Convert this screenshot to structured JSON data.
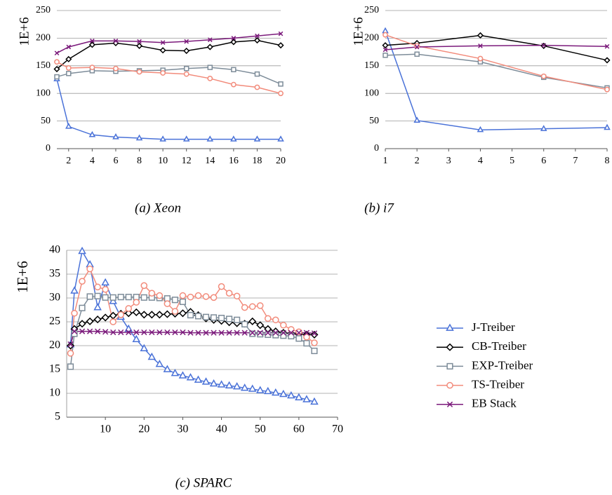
{
  "chart_data": [
    {
      "type": "line",
      "ylabel": "1E+6",
      "caption": "(a) Xeon",
      "x": [
        1,
        2,
        4,
        6,
        8,
        10,
        12,
        14,
        16,
        18,
        20
      ],
      "xlim": [
        1,
        20
      ],
      "xticks": [
        2,
        4,
        6,
        8,
        10,
        12,
        14,
        16,
        18,
        20
      ],
      "ylim": [
        0,
        250
      ],
      "yticks": [
        0,
        50,
        100,
        150,
        200,
        250
      ],
      "grid": true,
      "series": [
        {
          "color": "#4a72d8",
          "marker": "triangle",
          "values": [
            126,
            40,
            25,
            21,
            19,
            17,
            17,
            17,
            17,
            17,
            17
          ]
        },
        {
          "color": "#000000",
          "marker": "diamond",
          "values": [
            144,
            162,
            188,
            191,
            186,
            178,
            177,
            184,
            193,
            196,
            187
          ]
        },
        {
          "color": "#7d8c99",
          "marker": "square",
          "values": [
            130,
            136,
            141,
            140,
            141,
            142,
            145,
            147,
            143,
            135,
            117
          ]
        },
        {
          "color": "#f28b7b",
          "marker": "circle",
          "values": [
            157,
            146,
            147,
            145,
            139,
            137,
            135,
            127,
            116,
            111,
            100
          ]
        },
        {
          "color": "#7b1a7b",
          "marker": "x",
          "values": [
            173,
            184,
            195,
            195,
            194,
            192,
            194,
            197,
            200,
            204,
            208
          ]
        }
      ]
    },
    {
      "type": "line",
      "ylabel": "1E+6",
      "caption": "(b) i7",
      "x": [
        1,
        2,
        4,
        6,
        8
      ],
      "xlim": [
        1,
        8
      ],
      "xticks": [
        1,
        2,
        3,
        4,
        5,
        6,
        7,
        8
      ],
      "ylim": [
        0,
        250
      ],
      "yticks": [
        0,
        50,
        100,
        150,
        200,
        250
      ],
      "grid": true,
      "series": [
        {
          "color": "#4a72d8",
          "marker": "triangle",
          "values": [
            213,
            51,
            34,
            36,
            38
          ]
        },
        {
          "color": "#000000",
          "marker": "diamond",
          "values": [
            187,
            191,
            205,
            186,
            160
          ]
        },
        {
          "color": "#7d8c99",
          "marker": "square",
          "values": [
            169,
            171,
            157,
            129,
            110
          ]
        },
        {
          "color": "#f28b7b",
          "marker": "circle",
          "values": [
            206,
            186,
            163,
            131,
            107
          ]
        },
        {
          "color": "#7b1a7b",
          "marker": "x",
          "values": [
            179,
            184,
            186,
            187,
            185
          ]
        }
      ]
    },
    {
      "type": "line",
      "ylabel": "1E+6",
      "caption": "(c) SPARC",
      "legend": "right",
      "x": [
        1,
        2,
        4,
        6,
        8,
        10,
        12,
        14,
        16,
        18,
        20,
        22,
        24,
        26,
        28,
        30,
        32,
        34,
        36,
        38,
        40,
        42,
        44,
        46,
        48,
        50,
        52,
        54,
        56,
        58,
        60,
        62,
        64
      ],
      "xlim": [
        0,
        70
      ],
      "xticks": [
        10,
        20,
        30,
        40,
        50,
        60,
        70
      ],
      "ylim": [
        5,
        40
      ],
      "yticks": [
        5,
        10,
        15,
        20,
        25,
        30,
        35,
        40
      ],
      "grid": true,
      "series": [
        {
          "name": "J-Treiber",
          "color": "#4a72d8",
          "marker": "triangle",
          "values": [
            20.2,
            31.5,
            39.8,
            37,
            28,
            33.2,
            29.3,
            26,
            23.5,
            21.3,
            19.4,
            17.6,
            16.1,
            15,
            14.2,
            13.7,
            13.3,
            12.8,
            12.4,
            12,
            11.8,
            11.6,
            11.4,
            11.1,
            10.9,
            10.6,
            10.4,
            10.1,
            9.8,
            9.5,
            9.1,
            8.7,
            8.2
          ]
        },
        {
          "name": "CB-Treiber",
          "color": "#000000",
          "marker": "diamond",
          "values": [
            20,
            23.5,
            24.6,
            25.1,
            25.5,
            25.9,
            26.3,
            26.7,
            26.8,
            27,
            26.5,
            26.5,
            26.5,
            26.6,
            26.7,
            26.8,
            27.1,
            26.4,
            25.7,
            25.4,
            25.2,
            24.9,
            24.7,
            24.6,
            25.1,
            24.3,
            23.5,
            23,
            22.7,
            22.5,
            22.4,
            22.3,
            22.3
          ]
        },
        {
          "name": "EXP-Treiber",
          "color": "#7d8c99",
          "marker": "square",
          "values": [
            15.6,
            22.5,
            27.9,
            30.3,
            30.4,
            30.1,
            30.1,
            30.2,
            30.2,
            30.2,
            30.1,
            30.1,
            30,
            29.9,
            29.6,
            29.2,
            26.4,
            26.2,
            26,
            25.9,
            25.8,
            25.6,
            25.4,
            24.5,
            22.5,
            22.4,
            22.3,
            22.2,
            22.1,
            22,
            21.5,
            20.5,
            18.9
          ]
        },
        {
          "name": "TS-Treiber",
          "color": "#f28b7b",
          "marker": "circle",
          "values": [
            18.4,
            26.8,
            33.5,
            36.1,
            32.3,
            31.8,
            25,
            26.5,
            27.8,
            29.1,
            32.6,
            31,
            30.5,
            28.8,
            27.2,
            30.5,
            30.2,
            30.5,
            30.3,
            30.1,
            32.4,
            31,
            30.4,
            28,
            28.2,
            28.4,
            25.7,
            25.4,
            24.3,
            23.4,
            22.9,
            21.8,
            20.6
          ]
        },
        {
          "name": "EB Stack",
          "color": "#7b1a7b",
          "marker": "x",
          "values": [
            20.3,
            23,
            23,
            23,
            23,
            22.9,
            22.8,
            22.8,
            22.8,
            22.8,
            22.8,
            22.8,
            22.8,
            22.8,
            22.8,
            22.8,
            22.7,
            22.7,
            22.7,
            22.7,
            22.7,
            22.7,
            22.7,
            22.7,
            22.7,
            22.7,
            22.7,
            22.7,
            22.7,
            22.7,
            22.7,
            22.7,
            22.6
          ]
        }
      ]
    }
  ]
}
